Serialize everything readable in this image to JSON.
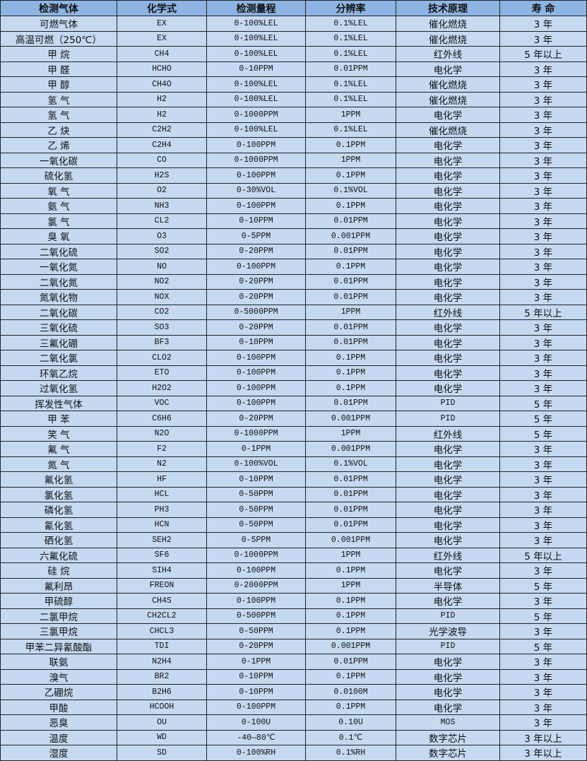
{
  "colors": {
    "header_bg": "#8DB4E2",
    "row_bg": "#C5D9F1",
    "border": "#222222"
  },
  "headers": [
    "检测气体",
    "化学式",
    "检测量程",
    "分辨率",
    "技术原理",
    "寿 命"
  ],
  "rows": [
    [
      "可燃气体",
      "EX",
      "0-100%LEL",
      "0.1%LEL",
      "催化燃烧",
      "3 年"
    ],
    [
      "高温可燃（250℃）",
      "EX",
      "0-100%LEL",
      "0.1%LEL",
      "催化燃烧",
      "3 年"
    ],
    [
      "甲 烷",
      "CH4",
      "0-100%LEL",
      "0.1%LEL",
      "红外线",
      "5 年以上"
    ],
    [
      "甲 醛",
      "HCHO",
      "0-10PPM",
      "0.01PPM",
      "电化学",
      "3 年"
    ],
    [
      "甲 醇",
      "CH4O",
      "0-100%LEL",
      "0.1%LEL",
      "催化燃烧",
      "3 年"
    ],
    [
      "氢 气",
      "H2",
      "0-100%LEL",
      "0.1%LEL",
      "催化燃烧",
      "3 年"
    ],
    [
      "氢 气",
      "H2",
      "0-1000PPM",
      "1PPM",
      "电化学",
      "3 年"
    ],
    [
      "乙 炔",
      "C2H2",
      "0-100%LEL",
      "0.1%LEL",
      "催化燃烧",
      "3 年"
    ],
    [
      "乙 烯",
      "C2H4",
      "0-100PPM",
      "0.1PPM",
      "电化学",
      "3 年"
    ],
    [
      "一氧化碳",
      "CO",
      "0-1000PPM",
      "1PPM",
      "电化学",
      "3 年"
    ],
    [
      "硫化氢",
      "H2S",
      "0-100PPM",
      "0.1PPM",
      "电化学",
      "3 年"
    ],
    [
      "氧 气",
      "O2",
      "0-30%VOL",
      "0.1%VOL",
      "电化学",
      "3 年"
    ],
    [
      "氨 气",
      "NH3",
      "0-100PPM",
      "0.1PPM",
      "电化学",
      "3 年"
    ],
    [
      "氯 气",
      "CL2",
      "0-10PPM",
      "0.01PPM",
      "电化学",
      "3 年"
    ],
    [
      "臭 氧",
      "O3",
      "0-5PPM",
      "0.001PPM",
      "电化学",
      "3 年"
    ],
    [
      "二氧化硫",
      "SO2",
      "0-20PPM",
      "0.01PPM",
      "电化学",
      "3 年"
    ],
    [
      "一氧化氮",
      "NO",
      "0-100PPM",
      "0.1PPM",
      "电化学",
      "3 年"
    ],
    [
      "二氧化氮",
      "NO2",
      "0-20PPM",
      "0.01PPM",
      "电化学",
      "3 年"
    ],
    [
      "氮氧化物",
      "NOX",
      "0-20PPM",
      "0.01PPM",
      "电化学",
      "3 年"
    ],
    [
      "二氧化碳",
      "CO2",
      "0-5000PPM",
      "1PPM",
      "红外线",
      "5 年以上"
    ],
    [
      "三氧化硫",
      "SO3",
      "0-20PPM",
      "0.01PPM",
      "电化学",
      "3 年"
    ],
    [
      "三氟化硼",
      "BF3",
      "0-10PPM",
      "0.01PPM",
      "电化学",
      "3 年"
    ],
    [
      "二氧化氯",
      "CLO2",
      "0-100PPM",
      "0.1PPM",
      "电化学",
      "3 年"
    ],
    [
      "环氧乙烷",
      "ETO",
      "0-100PPM",
      "0.1PPM",
      "电化学",
      "3 年"
    ],
    [
      "过氧化氢",
      "H2O2",
      "0-100PPM",
      "0.1PPM",
      "电化学",
      "3 年"
    ],
    [
      "挥发性气体",
      "VOC",
      "0-100PPM",
      "0.01PPM",
      "PID",
      "5 年"
    ],
    [
      "甲 苯",
      "C6H6",
      "0-20PPM",
      "0.001PPM",
      "PID",
      "5 年"
    ],
    [
      "笑 气",
      "N2O",
      "0-1000PPM",
      "1PPM",
      "红外线",
      "5 年"
    ],
    [
      "氟 气",
      "F2",
      "0-1PPM",
      "0.001PPM",
      "电化学",
      "3 年"
    ],
    [
      "氮 气",
      "N2",
      "0-100%VOL",
      "0.1%VOL",
      "电化学",
      "3 年"
    ],
    [
      "氟化氢",
      "HF",
      "0-10PPM",
      "0.01PPM",
      "电化学",
      "3 年"
    ],
    [
      "氯化氢",
      "HCL",
      "0-50PPM",
      "0.01PPM",
      "电化学",
      "3 年"
    ],
    [
      "磷化氢",
      "PH3",
      "0-50PPM",
      "0.01PPM",
      "电化学",
      "3 年"
    ],
    [
      "氰化氢",
      "HCN",
      "0-50PPM",
      "0.01PPM",
      "电化学",
      "3 年"
    ],
    [
      "硒化氢",
      "SEH2",
      "0-5PPM",
      "0.001PPM",
      "电化学",
      "3 年"
    ],
    [
      "六氟化硫",
      "SF6",
      "0-1000PPM",
      "1PPM",
      "红外线",
      "5 年以上"
    ],
    [
      "硅 烷",
      "SIH4",
      "0-100PPM",
      "0.1PPM",
      "电化学",
      "3 年"
    ],
    [
      "氟利昂",
      "FREON",
      "0-2000PPM",
      "1PPM",
      "半导体",
      "5 年"
    ],
    [
      "甲硫醇",
      "CH4S",
      "0-100PPM",
      "0.1PPM",
      "电化学",
      "3 年"
    ],
    [
      "二氯甲烷",
      "CH2CL2",
      "0-500PPM",
      "0.1PPM",
      "PID",
      "5 年"
    ],
    [
      "三氯甲烷",
      "CHCL3",
      "0-50PPM",
      "0.1PPM",
      "光学波导",
      "3 年"
    ],
    [
      "甲苯二异氰酸酯",
      "TDI",
      "0-20PPM",
      "0.001PPM",
      "PID",
      "5 年"
    ],
    [
      "联氨",
      "N2H4",
      "0-1PPM",
      "0.01PPM",
      "电化学",
      "3 年"
    ],
    [
      "溴气",
      "BR2",
      "0-10PPM",
      "0.1PPM",
      "电化学",
      "3 年"
    ],
    [
      "乙硼烷",
      "B2H6",
      "0-10PPM",
      "0.0100M",
      "电化学",
      "3 年"
    ],
    [
      "甲酸",
      "HCOOH",
      "0-100PPM",
      "0.1PPM",
      "电化学",
      "3 年"
    ],
    [
      "恶臭",
      "OU",
      "0-100U",
      "0.10U",
      "MOS",
      "3 年"
    ],
    [
      "温度",
      "WD",
      "-40—80℃",
      "0.1℃",
      "数字芯片",
      "3 年以上"
    ],
    [
      "湿度",
      "SD",
      "0-100%RH",
      "0.1%RH",
      "数字芯片",
      "3 年以上"
    ]
  ]
}
